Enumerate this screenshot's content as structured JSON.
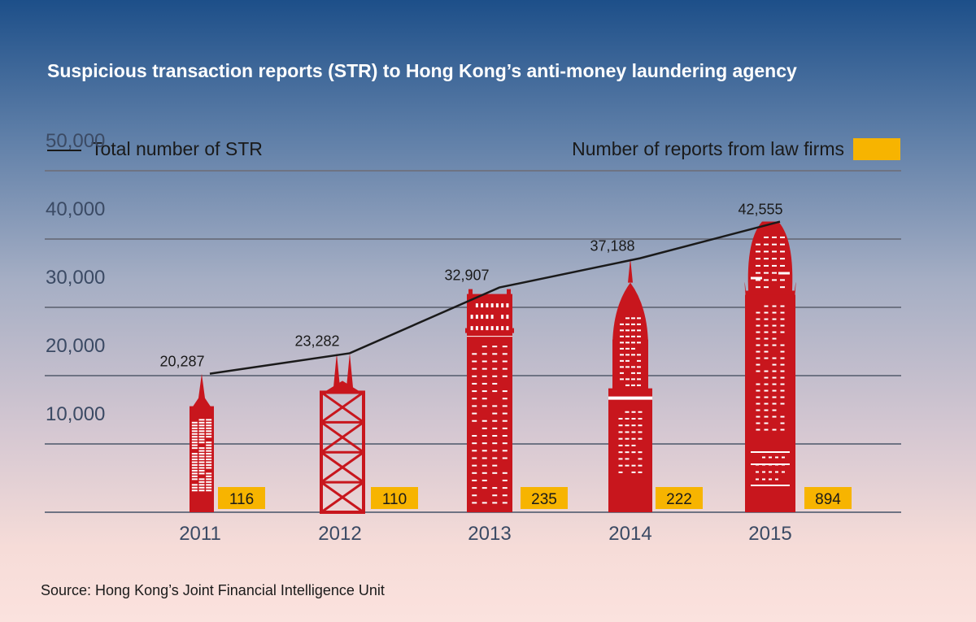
{
  "title": "Suspicious transaction reports (STR) to Hong Kong’s anti-money laundering agency",
  "legend": {
    "line_label": "Total number of STR",
    "bar_label": "Number of reports from law firms"
  },
  "source": "Source: Hong Kong’s Joint Financial Intelligence Unit",
  "colors": {
    "building": "#c8161d",
    "badge": "#f7b400",
    "line": "#1a1a1a",
    "grid": "#6e7383"
  },
  "chart_data": {
    "type": "line",
    "categories": [
      "2011",
      "2012",
      "2013",
      "2014",
      "2015"
    ],
    "series": [
      {
        "name": "Total number of STR",
        "values": [
          20287,
          23282,
          32907,
          37188,
          42555
        ],
        "labels": [
          "20,287",
          "23,282",
          "32,907",
          "37,188",
          "42,555"
        ]
      },
      {
        "name": "Number of reports from law firms",
        "values": [
          116,
          110,
          235,
          222,
          894
        ],
        "labels": [
          "116",
          "110",
          "235",
          "222",
          "894"
        ]
      }
    ],
    "ylim": [
      0,
      50000
    ],
    "yticks": [
      10000,
      20000,
      30000,
      40000,
      50000
    ],
    "ytick_labels": [
      "10,000",
      "20,000",
      "30,000",
      "40,000",
      "50,000"
    ],
    "grid": true,
    "legend_position": "top",
    "building_styles": [
      "tower",
      "cross-braced",
      "block",
      "spire",
      "dome"
    ]
  }
}
